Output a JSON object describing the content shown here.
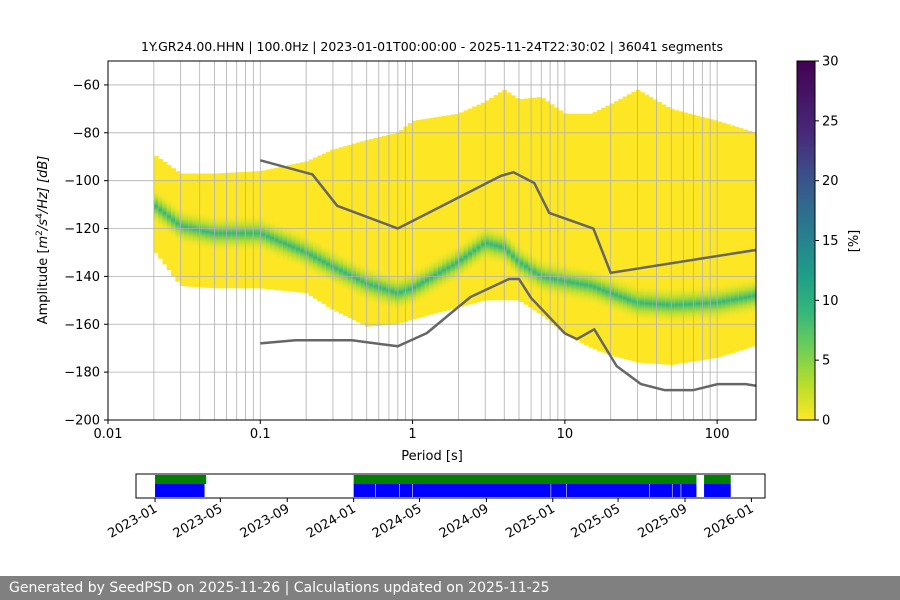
{
  "footer": {
    "text": "Generated by SeedPSD on 2025-11-26 | Calculations updated on 2025-11-25"
  },
  "colors": {
    "nlnm_nhnm_line": "#666666",
    "grid": "#b0b0b0",
    "availability_green": "#008000",
    "availability_blue": "#0000ff",
    "viridis_low": "#fde725",
    "viridis_high": "#440154"
  },
  "chart_data": [
    {
      "type": "heatmap",
      "title": "1Y.GR24.00.HHN | 100.0Hz | 2023-01-01T00:00:00 - 2025-11-24T22:30:02 | 36041 segments",
      "xlabel": "Period [s]",
      "ylabel_parts": {
        "pre": "Amplitude [",
        "m": "m",
        "e1": "2",
        "slash1": "/",
        "s": "s",
        "e2": "4",
        "post": "/Hz] [dB]"
      },
      "x_scale": "log",
      "xlim": [
        0.01,
        180
      ],
      "ylim": [
        -200,
        -50
      ],
      "xticks": [
        {
          "value": 0.01,
          "label": "0.01"
        },
        {
          "value": 0.1,
          "label": "0.1"
        },
        {
          "value": 1,
          "label": "1"
        },
        {
          "value": 10,
          "label": "10"
        },
        {
          "value": 100,
          "label": "100"
        }
      ],
      "yticks": [
        {
          "value": -60,
          "label": "−60"
        },
        {
          "value": -80,
          "label": "−80"
        },
        {
          "value": -100,
          "label": "−100"
        },
        {
          "value": -120,
          "label": "−120"
        },
        {
          "value": -140,
          "label": "−140"
        },
        {
          "value": -160,
          "label": "−160"
        },
        {
          "value": -180,
          "label": "−180"
        },
        {
          "value": -200,
          "label": "−200"
        }
      ],
      "grid": "vertical lines at each PSD period bin, horizontal at y ticks",
      "colorbar": {
        "label": "[%]",
        "range": [
          0,
          30
        ],
        "ticks": [
          {
            "value": 0,
            "label": "0"
          },
          {
            "value": 5,
            "label": "5"
          },
          {
            "value": 10,
            "label": "10"
          },
          {
            "value": 15,
            "label": "15"
          },
          {
            "value": 20,
            "label": "20"
          },
          {
            "value": 25,
            "label": "25"
          },
          {
            "value": 30,
            "label": "30"
          }
        ]
      },
      "density_envelope": {
        "period": [
          0.02,
          0.03,
          0.05,
          0.1,
          0.2,
          0.3,
          0.5,
          0.8,
          1,
          2,
          3,
          4,
          5,
          7,
          10,
          15,
          20,
          30,
          50,
          100,
          180
        ],
        "upper_db": [
          -89,
          -97,
          -97,
          -96,
          -92,
          -87,
          -83,
          -80,
          -75,
          -72,
          -67,
          -62,
          -66,
          -65,
          -72,
          -72,
          -68,
          -62,
          -70,
          -75,
          -80
        ],
        "lower_db": [
          -129,
          -144,
          -145,
          -145,
          -147,
          -154,
          -161,
          -160,
          -158,
          -153,
          -150,
          -150,
          -150,
          -156,
          -164,
          -170,
          -173,
          -176,
          -177,
          -174,
          -169
        ],
        "mode_db": [
          -110,
          -119,
          -122,
          -122,
          -130,
          -136,
          -143,
          -147,
          -145,
          -134,
          -126,
          -128,
          -134,
          -140,
          -142,
          -144,
          -147,
          -151,
          -152,
          -151,
          -148
        ]
      },
      "nhnm": {
        "period": [
          0.1,
          0.22,
          0.32,
          0.8,
          3.8,
          4.6,
          6.3,
          7.9,
          15.4,
          20,
          354.8
        ],
        "db": [
          -91.5,
          -97.4,
          -110.5,
          -120,
          -98,
          -96.5,
          -101,
          -113.5,
          -120,
          -138.5,
          -126
        ]
      },
      "nlnm": {
        "period": [
          0.1,
          0.17,
          0.4,
          0.8,
          1.24,
          2.4,
          4.3,
          5,
          6,
          10,
          12,
          15.6,
          21.9,
          31.6,
          45,
          70,
          101,
          154,
          180
        ],
        "db": [
          -168,
          -166.7,
          -166.7,
          -169.2,
          -163.7,
          -148.6,
          -141.1,
          -141.1,
          -149,
          -163.8,
          -166.2,
          -162.1,
          -177.5,
          -185,
          -187.5,
          -187.5,
          -185,
          -185,
          -185.7
        ]
      }
    },
    {
      "type": "availability",
      "date_range": [
        "2022-11-27",
        "2026-01-26"
      ],
      "xticks": [
        "2023-01",
        "2023-05",
        "2023-09",
        "2024-01",
        "2024-05",
        "2024-09",
        "2025-01",
        "2025-05",
        "2025-09",
        "2026-01"
      ],
      "green_intervals": [
        [
          "2023-01-01",
          "2023-04-05"
        ],
        [
          "2024-01-01",
          "2025-09-22"
        ],
        [
          "2025-10-06",
          "2025-11-24"
        ]
      ],
      "blue_intervals": [
        [
          "2023-01-01",
          "2023-04-02"
        ],
        [
          "2024-01-01",
          "2024-02-10"
        ],
        [
          "2024-02-11",
          "2024-03-25"
        ],
        [
          "2024-03-26",
          "2024-04-18"
        ],
        [
          "2024-04-19",
          "2024-12-28"
        ],
        [
          "2024-12-29",
          "2025-01-26"
        ],
        [
          "2025-01-27",
          "2025-06-27"
        ],
        [
          "2025-06-28",
          "2025-08-08"
        ],
        [
          "2025-08-09",
          "2025-08-24"
        ],
        [
          "2025-08-25",
          "2025-09-22"
        ],
        [
          "2025-10-06",
          "2025-11-24"
        ]
      ]
    }
  ]
}
